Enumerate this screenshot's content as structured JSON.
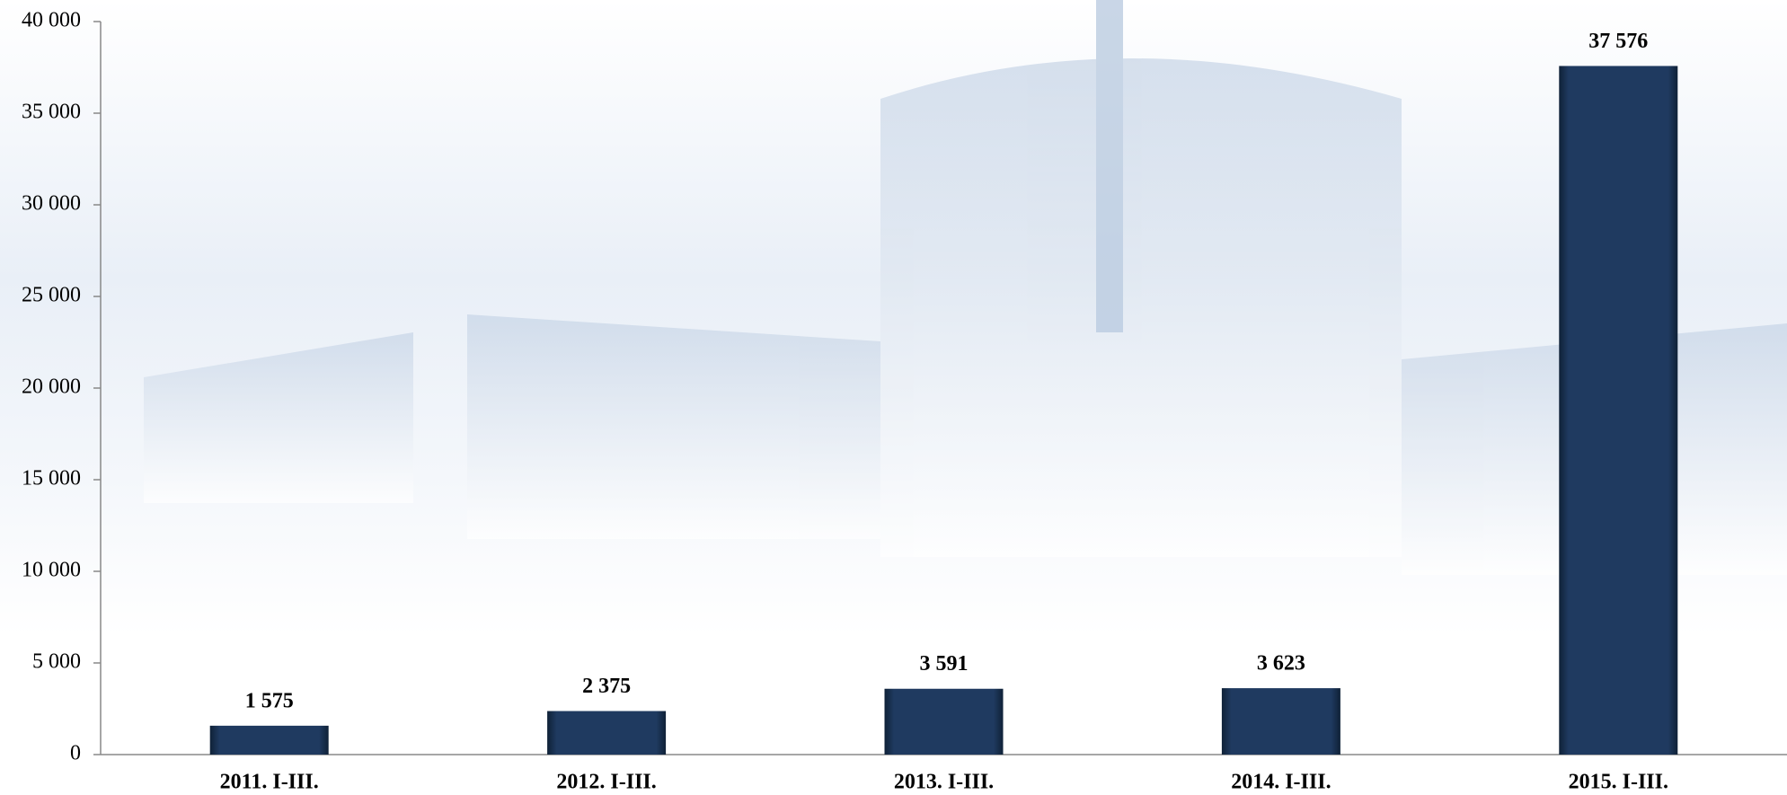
{
  "chart_data": {
    "type": "bar",
    "categories": [
      "2011. I-III.",
      "2012. I-III.",
      "2013. I-III.",
      "2014. I-III.",
      "2015. I-III."
    ],
    "values": [
      1575,
      2375,
      3591,
      3623,
      37576
    ],
    "value_labels": [
      "1 575",
      "2 375",
      "3 591",
      "3 623",
      "37 576"
    ],
    "color": "#1f3a60",
    "ylim": [
      0,
      40000
    ],
    "yticks": [
      0,
      {
        "value": 5000,
        "label": "5 000"
      },
      {
        "value": 10000,
        "label": "10 000"
      },
      {
        "value": 15000,
        "label": "15 000"
      },
      {
        "value": 20000,
        "label": "20 000"
      },
      {
        "value": 25000,
        "label": "25 000"
      },
      {
        "value": 30000,
        "label": "30 000"
      },
      {
        "value": 35000,
        "label": "35 000"
      },
      {
        "value": 40000,
        "label": "40 000"
      }
    ],
    "grid": false
  }
}
